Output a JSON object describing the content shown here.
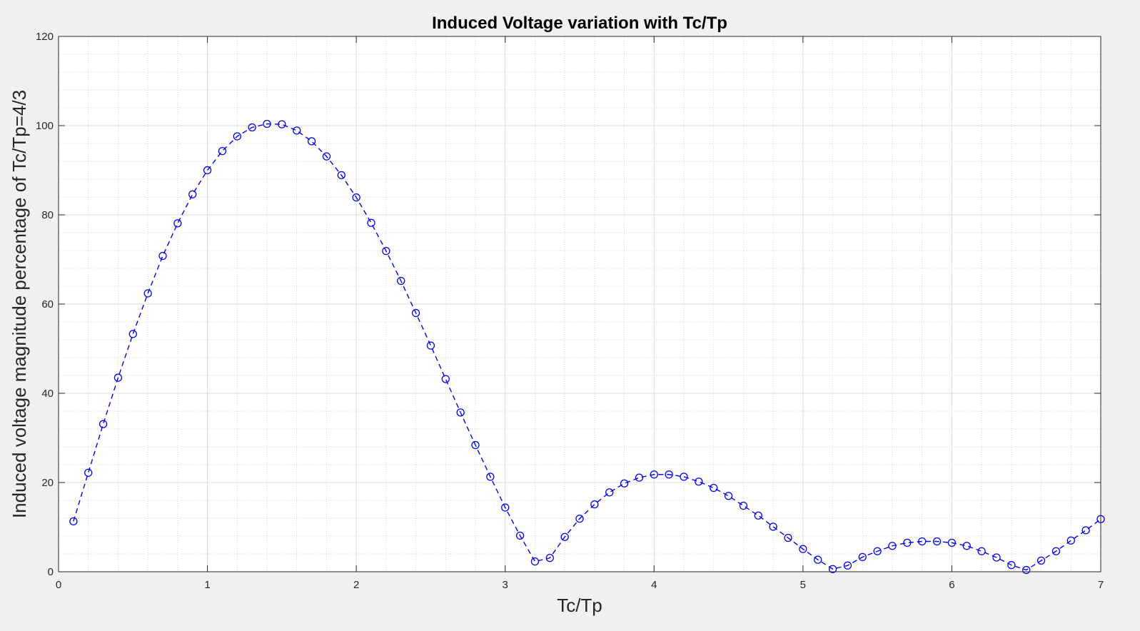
{
  "colors": {
    "figure_background": "#f0f0f0",
    "axes_background": "#ffffff",
    "series": "#0000ff",
    "axis": "#262626",
    "major_grid": "#dcdcdc",
    "minor_grid": "#c8c8c8"
  },
  "chart_data": {
    "type": "line",
    "title": "Induced Voltage variation with Tc/Tp",
    "xlabel": "Tc/Tp",
    "ylabel": "Induced voltage magnitude percentage of Tc/Tp=4/3",
    "xlim": [
      0,
      7
    ],
    "ylim": [
      0,
      120
    ],
    "xticks": [
      0,
      1,
      2,
      3,
      4,
      5,
      6,
      7
    ],
    "yticks": [
      0,
      20,
      40,
      60,
      80,
      100,
      120
    ],
    "xtick_labels": [
      "0",
      "1",
      "2",
      "3",
      "4",
      "5",
      "6",
      "7"
    ],
    "ytick_labels": [
      "0",
      "20",
      "40",
      "60",
      "80",
      "100",
      "120"
    ],
    "grid": "major and minor",
    "line_style": "dashed",
    "marker": "circle",
    "series": [
      {
        "x": [
          0.1,
          0.2,
          0.3,
          0.4,
          0.5,
          0.6,
          0.7,
          0.8,
          0.9,
          1.0,
          1.1,
          1.2,
          1.3,
          1.4,
          1.5,
          1.6,
          1.7,
          1.8,
          1.9,
          2.0,
          2.1,
          2.2,
          2.3,
          2.4,
          2.5,
          2.6,
          2.7,
          2.8,
          2.9,
          3.0,
          3.1,
          3.2,
          3.3,
          3.4,
          3.5,
          3.6,
          3.7,
          3.8,
          3.9,
          4.0,
          4.1,
          4.2,
          4.3,
          4.4,
          4.5,
          4.6,
          4.7,
          4.8,
          4.9,
          5.0,
          5.1,
          5.2,
          5.3,
          5.4,
          5.5,
          5.6,
          5.7,
          5.8,
          5.9,
          6.0,
          6.1,
          6.2,
          6.3,
          6.4,
          6.5,
          6.6,
          6.7,
          6.8,
          6.9,
          7.0
        ],
        "y": [
          11.3,
          22.2,
          33.1,
          43.5,
          53.3,
          62.4,
          70.8,
          78.1,
          84.6,
          90.0,
          94.3,
          97.6,
          99.6,
          100.4,
          100.3,
          98.9,
          96.5,
          93.1,
          88.9,
          83.9,
          78.2,
          71.9,
          65.2,
          58.0,
          50.7,
          43.2,
          35.7,
          28.4,
          21.3,
          14.4,
          8.1,
          2.3,
          3.1,
          7.8,
          11.9,
          15.1,
          17.8,
          19.8,
          21.1,
          21.8,
          21.8,
          21.3,
          20.2,
          18.8,
          17.0,
          14.8,
          12.6,
          10.1,
          7.6,
          5.1,
          2.7,
          0.6,
          1.4,
          3.3,
          4.6,
          5.8,
          6.5,
          6.8,
          6.8,
          6.5,
          5.8,
          4.6,
          3.2,
          1.5,
          0.4,
          2.5,
          4.6,
          7.0,
          9.3,
          11.8
        ]
      }
    ]
  }
}
